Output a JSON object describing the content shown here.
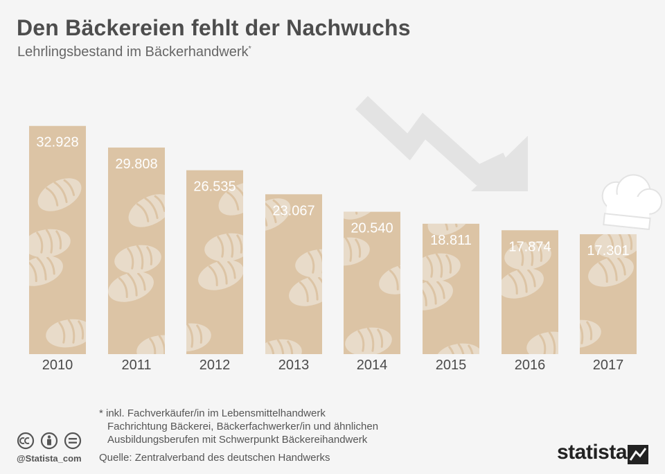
{
  "header": {
    "title": "Den Bäckereien fehlt der Nachwuchs",
    "subtitle": "Lehrlingsbestand im Bäckerhandwerk",
    "subtitle_marker": "*"
  },
  "chart_data": {
    "type": "bar",
    "categories": [
      "2010",
      "2011",
      "2012",
      "2013",
      "2014",
      "2015",
      "2016",
      "2017"
    ],
    "values": [
      32928,
      29808,
      26535,
      23067,
      20540,
      18811,
      17874,
      17301
    ],
    "value_labels": [
      "32.928",
      "29.808",
      "26.535",
      "23.067",
      "20.540",
      "18.811",
      "17.874",
      "17.301"
    ],
    "title": "Den Bäckereien fehlt der Nachwuchs",
    "xlabel": "",
    "ylabel": "",
    "ylim": [
      0,
      33000
    ],
    "grid": false,
    "colors": {
      "bar": "#dcc4a5",
      "bread": "#e8dbc9",
      "label": "#ffffff",
      "arrow": "#e3e3e3"
    }
  },
  "footer": {
    "footnote_lines": [
      "* inkl. Fachverkäufer/in im Lebensmittelhandwerk",
      "Fachrichtung Bäckerei, Bäckerfachwerker/in und ähnlichen",
      "Ausbildungsberufen mit Schwerpunkt Bäckereihandwerk"
    ],
    "source": "Quelle: Zentralverband des deutschen Handwerks",
    "handle": "@Statista_com",
    "brand": "statista",
    "license_icons": [
      "cc-icon",
      "attribution-icon",
      "no-derivatives-icon"
    ]
  }
}
